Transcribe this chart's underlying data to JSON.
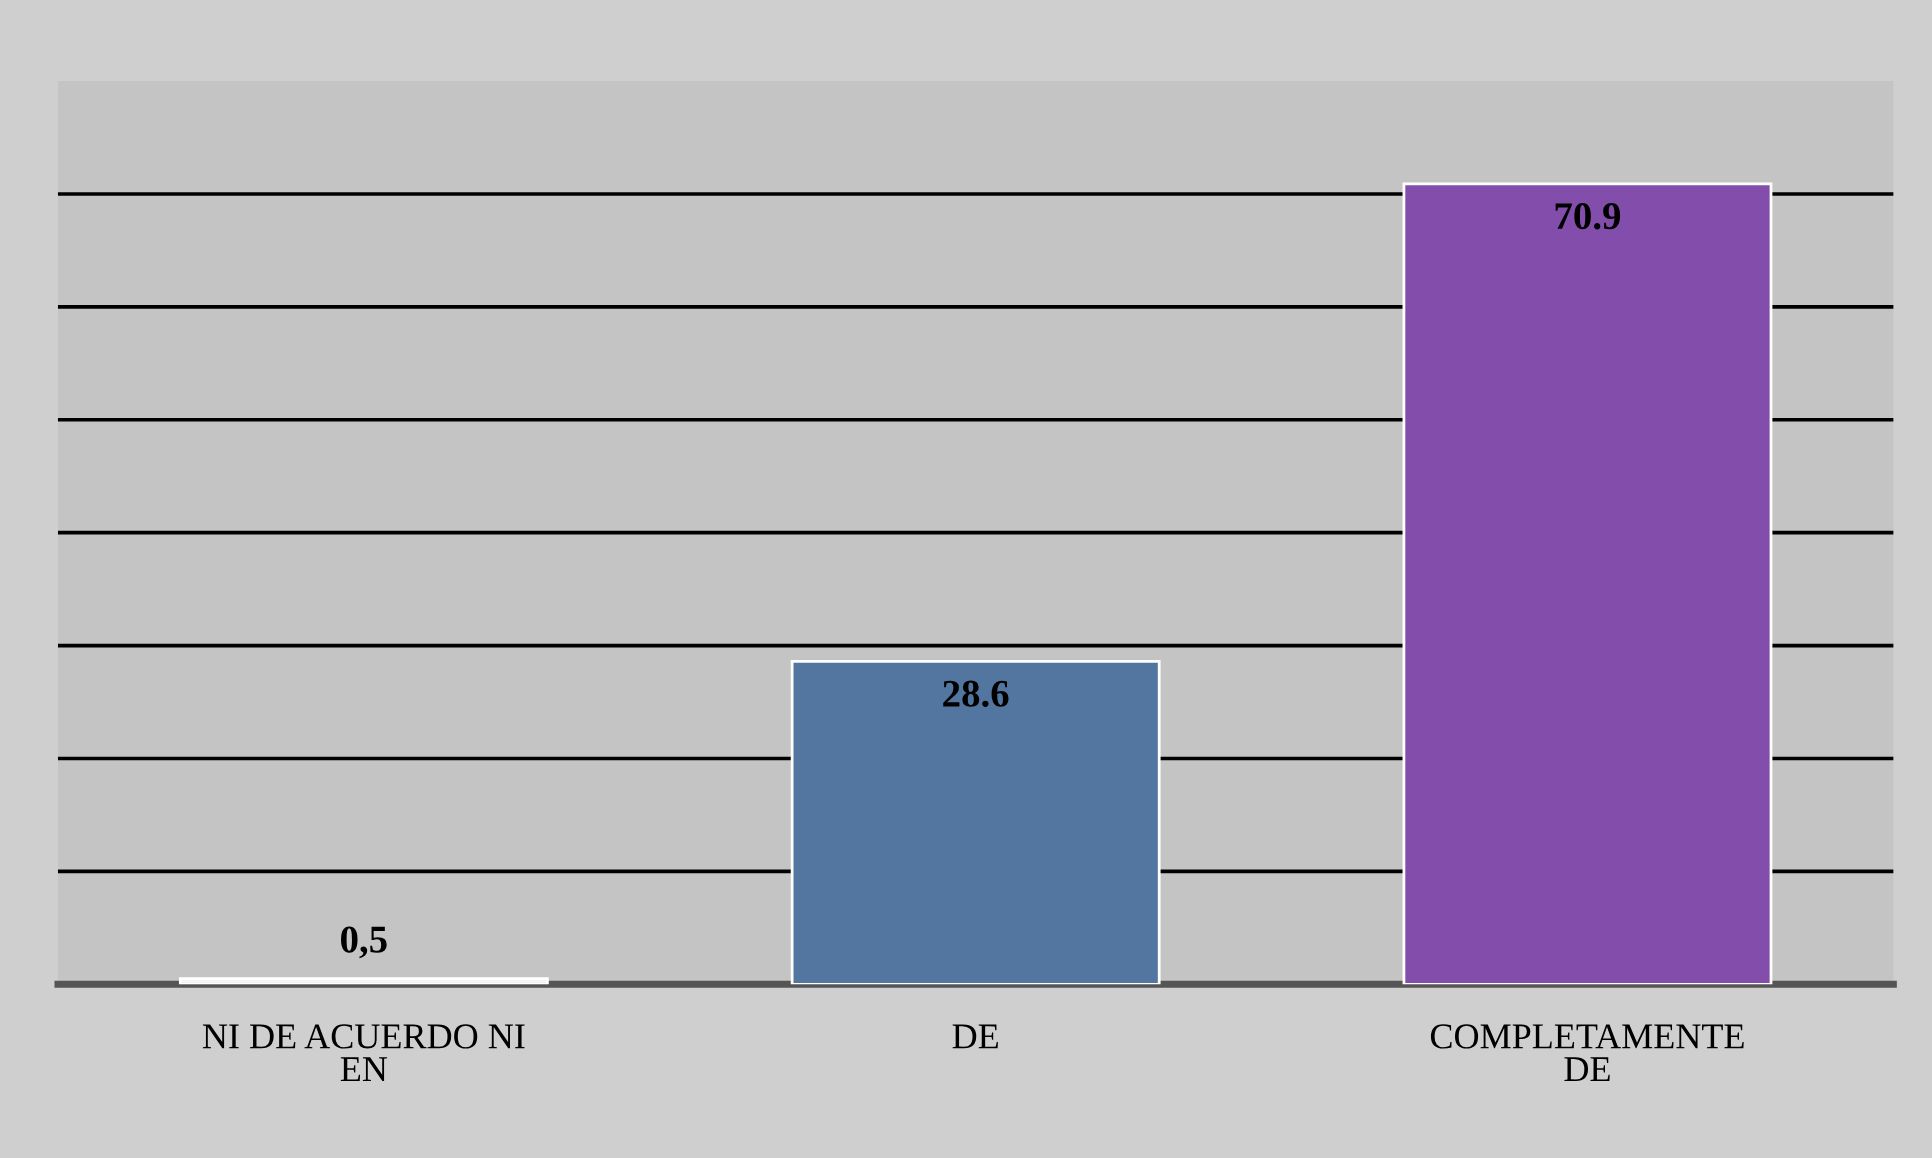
{
  "chart_data": {
    "type": "bar",
    "categories": [
      "NI DE ACUERDO NI\nEN",
      "DE",
      "COMPLETAMENTE\nDE"
    ],
    "values": [
      0.5,
      28.6,
      70.9
    ],
    "colors": [
      "#f4f4f4",
      "#52769f",
      "#834dab"
    ],
    "value_labels": [
      "0,5",
      "28.6",
      "70.9"
    ],
    "ylim": [
      0,
      80
    ],
    "yticks": [
      {
        "value": 10,
        "label": null
      },
      {
        "value": 20,
        "label": null
      },
      {
        "value": 30,
        "label": null
      },
      {
        "value": 40,
        "label": null
      },
      {
        "value": 50,
        "label": null
      },
      {
        "value": 60,
        "label": null
      },
      {
        "value": 70,
        "label": null
      }
    ],
    "tick_labels": "x",
    "grid": "y",
    "legend": false
  }
}
